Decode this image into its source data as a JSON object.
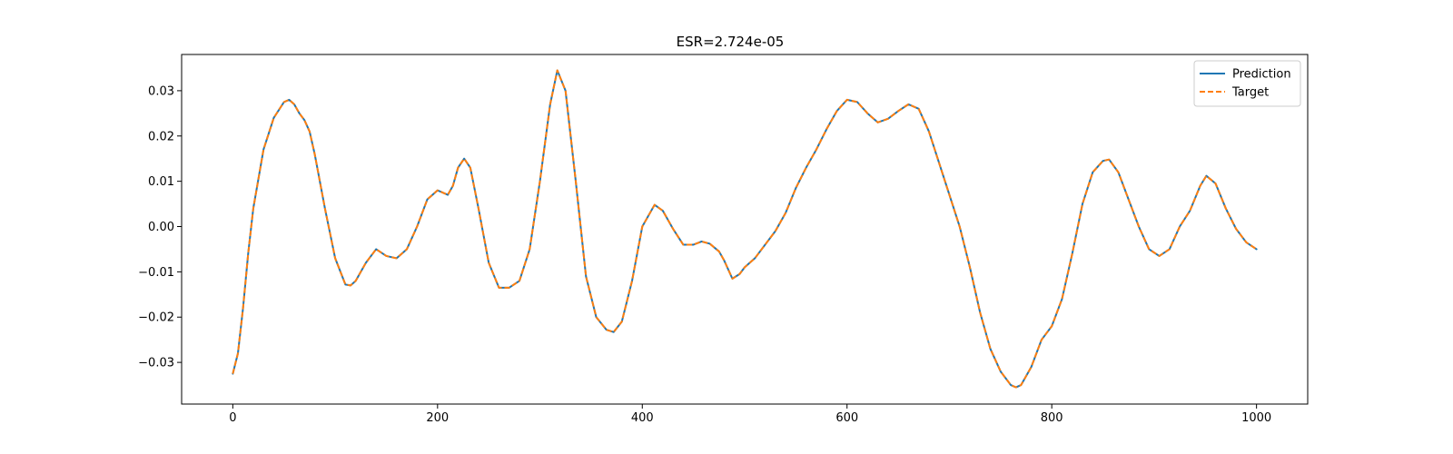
{
  "chart_data": {
    "type": "line",
    "title": "ESR=2.724e-05",
    "xlabel": "",
    "ylabel": "",
    "xlim": [
      -50,
      1050
    ],
    "ylim": [
      -0.0392,
      0.038
    ],
    "x_ticks": [
      0,
      200,
      400,
      600,
      800,
      1000
    ],
    "x_tick_labels": [
      "0",
      "200",
      "400",
      "600",
      "800",
      "1000"
    ],
    "y_ticks": [
      -0.03,
      -0.02,
      -0.01,
      0.0,
      0.01,
      0.02,
      0.03
    ],
    "y_tick_labels": [
      "−0.03",
      "−0.02",
      "−0.01",
      "0.00",
      "0.01",
      "0.02",
      "0.03"
    ],
    "grid": false,
    "legend_position": "top-right",
    "series": [
      {
        "name": "Prediction",
        "color": "#1f77b4",
        "style": "solid",
        "x": [
          0,
          5,
          10,
          15,
          20,
          30,
          40,
          50,
          55,
          60,
          65,
          70,
          75,
          80,
          90,
          100,
          110,
          115,
          120,
          130,
          140,
          150,
          160,
          170,
          180,
          190,
          200,
          205,
          210,
          215,
          220,
          226,
          232,
          240,
          250,
          260,
          270,
          280,
          290,
          300,
          310,
          317,
          325,
          335,
          345,
          355,
          365,
          372,
          380,
          390,
          400,
          412,
          420,
          430,
          440,
          450,
          458,
          466,
          475,
          480,
          488,
          495,
          500,
          510,
          520,
          530,
          540,
          550,
          560,
          570,
          580,
          590,
          600,
          610,
          620,
          630,
          640,
          650,
          660,
          670,
          680,
          690,
          700,
          710,
          720,
          730,
          740,
          750,
          760,
          765,
          770,
          780,
          790,
          800,
          810,
          820,
          830,
          840,
          850,
          856,
          865,
          875,
          885,
          895,
          905,
          915,
          925,
          935,
          945,
          951,
          960,
          970,
          980,
          990,
          1000
        ],
        "y": [
          -0.0325,
          -0.028,
          -0.018,
          -0.006,
          0.004,
          0.017,
          0.024,
          0.0275,
          0.028,
          0.027,
          0.025,
          0.0235,
          0.021,
          0.016,
          0.004,
          -0.007,
          -0.0128,
          -0.013,
          -0.012,
          -0.008,
          -0.005,
          -0.0065,
          -0.007,
          -0.005,
          0.0,
          0.006,
          0.008,
          0.0075,
          0.007,
          0.009,
          0.013,
          0.015,
          0.013,
          0.004,
          -0.008,
          -0.0135,
          -0.0135,
          -0.012,
          -0.005,
          0.01,
          0.027,
          0.0345,
          0.03,
          0.01,
          -0.011,
          -0.02,
          -0.0228,
          -0.0233,
          -0.021,
          -0.012,
          0.0,
          0.0048,
          0.0035,
          -0.0005,
          -0.004,
          -0.004,
          -0.0033,
          -0.0038,
          -0.0055,
          -0.0075,
          -0.0115,
          -0.0105,
          -0.009,
          -0.007,
          -0.004,
          -0.001,
          0.003,
          0.0085,
          0.013,
          0.017,
          0.0215,
          0.0255,
          0.028,
          0.0275,
          0.025,
          0.023,
          0.0238,
          0.0255,
          0.027,
          0.026,
          0.021,
          0.014,
          0.007,
          0.0,
          -0.009,
          -0.019,
          -0.027,
          -0.032,
          -0.035,
          -0.0355,
          -0.035,
          -0.031,
          -0.025,
          -0.022,
          -0.016,
          -0.006,
          0.005,
          0.012,
          0.0145,
          0.0148,
          0.012,
          0.006,
          0.0,
          -0.005,
          -0.0065,
          -0.005,
          0.0,
          0.0035,
          0.009,
          0.0112,
          0.0095,
          0.004,
          -0.0005,
          -0.0035,
          -0.005
        ]
      },
      {
        "name": "Target",
        "color": "#ff7f0e",
        "style": "dashed",
        "x": [
          0,
          5,
          10,
          15,
          20,
          30,
          40,
          50,
          55,
          60,
          65,
          70,
          75,
          80,
          90,
          100,
          110,
          115,
          120,
          130,
          140,
          150,
          160,
          170,
          180,
          190,
          200,
          205,
          210,
          215,
          220,
          226,
          232,
          240,
          250,
          260,
          270,
          280,
          290,
          300,
          310,
          317,
          325,
          335,
          345,
          355,
          365,
          372,
          380,
          390,
          400,
          412,
          420,
          430,
          440,
          450,
          458,
          466,
          475,
          480,
          488,
          495,
          500,
          510,
          520,
          530,
          540,
          550,
          560,
          570,
          580,
          590,
          600,
          610,
          620,
          630,
          640,
          650,
          660,
          670,
          680,
          690,
          700,
          710,
          720,
          730,
          740,
          750,
          760,
          765,
          770,
          780,
          790,
          800,
          810,
          820,
          830,
          840,
          850,
          856,
          865,
          875,
          885,
          895,
          905,
          915,
          925,
          935,
          945,
          951,
          960,
          970,
          980,
          990,
          1000
        ],
        "y": [
          -0.0325,
          -0.028,
          -0.018,
          -0.006,
          0.004,
          0.017,
          0.024,
          0.0275,
          0.028,
          0.027,
          0.025,
          0.0235,
          0.021,
          0.016,
          0.004,
          -0.007,
          -0.0128,
          -0.013,
          -0.012,
          -0.008,
          -0.005,
          -0.0065,
          -0.007,
          -0.005,
          0.0,
          0.006,
          0.008,
          0.0075,
          0.007,
          0.009,
          0.013,
          0.015,
          0.013,
          0.004,
          -0.008,
          -0.0135,
          -0.0135,
          -0.012,
          -0.005,
          0.01,
          0.027,
          0.0345,
          0.03,
          0.01,
          -0.011,
          -0.02,
          -0.0228,
          -0.0233,
          -0.021,
          -0.012,
          0.0,
          0.0048,
          0.0035,
          -0.0005,
          -0.004,
          -0.004,
          -0.0033,
          -0.0038,
          -0.0055,
          -0.0075,
          -0.0115,
          -0.0105,
          -0.009,
          -0.007,
          -0.004,
          -0.001,
          0.003,
          0.0085,
          0.013,
          0.017,
          0.0215,
          0.0255,
          0.028,
          0.0275,
          0.025,
          0.023,
          0.0238,
          0.0255,
          0.027,
          0.026,
          0.021,
          0.014,
          0.007,
          0.0,
          -0.009,
          -0.019,
          -0.027,
          -0.032,
          -0.035,
          -0.0355,
          -0.035,
          -0.031,
          -0.025,
          -0.022,
          -0.016,
          -0.006,
          0.005,
          0.012,
          0.0145,
          0.0148,
          0.012,
          0.006,
          0.0,
          -0.005,
          -0.0065,
          -0.005,
          0.0,
          0.0035,
          0.009,
          0.0112,
          0.0095,
          0.004,
          -0.0005,
          -0.0035,
          -0.005
        ]
      }
    ]
  }
}
